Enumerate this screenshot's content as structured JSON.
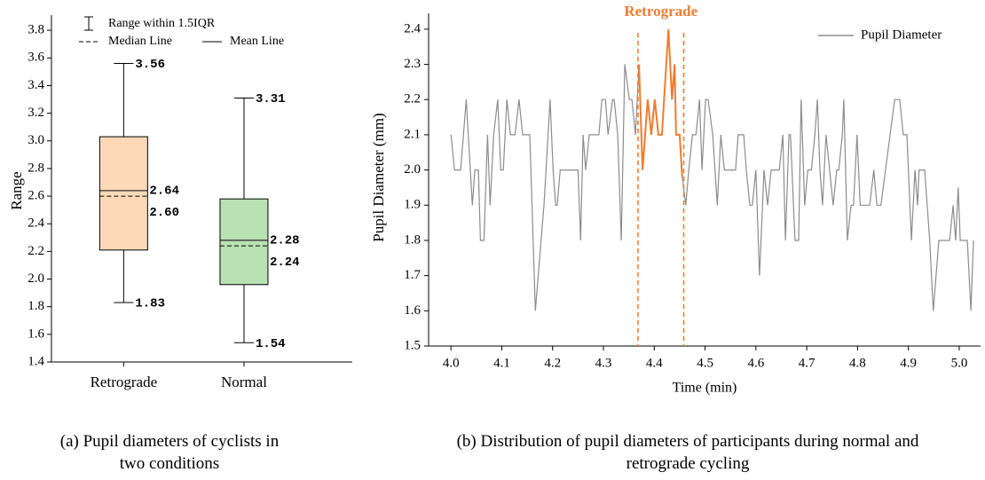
{
  "chart_data": [
    {
      "type": "box",
      "ylabel": "Range",
      "caption": "(a) Pupil diameters of cyclists in two conditions",
      "legend": [
        "Range within 1.5IQR",
        "Median Line",
        "Mean Line"
      ],
      "categories": [
        "Retrograde",
        "Normal"
      ],
      "boxes": [
        {
          "whislo": 1.83,
          "q1": 2.21,
          "med": 2.6,
          "mean": 2.64,
          "q3": 3.03,
          "whishi": 3.56,
          "color": "#fdd9b8",
          "value_labels": {
            "whislo": "1.83",
            "med": "2.60",
            "mean": "2.64",
            "whishi": "3.56"
          }
        },
        {
          "whislo": 1.54,
          "q1": 1.96,
          "med": 2.24,
          "mean": 2.28,
          "q3": 2.58,
          "whishi": 3.31,
          "color": "#b9e1b3",
          "value_labels": {
            "whislo": "1.54",
            "med": "2.24",
            "mean": "2.28",
            "whishi": "3.31"
          }
        }
      ],
      "ylim": [
        1.4,
        3.91
      ],
      "yticks": [
        1.4,
        1.6,
        1.8,
        {
          "value": 2,
          "label": "2.0"
        },
        2.2,
        2.4,
        2.6,
        2.8,
        {
          "value": 3,
          "label": "3.0"
        },
        3.2,
        3.4,
        3.6,
        3.8
      ]
    },
    {
      "type": "line",
      "xlabel": "Time (min)",
      "ylabel": "Pupil Diameter (mm)",
      "caption": "(b) Distribution of pupil diameters of participants during normal and retrograde cycling",
      "highlight": {
        "label": "Retrograde",
        "xrange": [
          4.368,
          4.458
        ],
        "color": "#ed7d31"
      },
      "x": [
        4.0,
        4.007,
        4.019,
        4.03,
        4.042,
        4.047,
        4.054,
        4.058,
        4.065,
        4.072,
        4.077,
        4.084,
        4.092,
        4.098,
        4.103,
        4.11,
        4.117,
        4.126,
        4.134,
        4.141,
        4.155,
        4.166,
        4.183,
        4.195,
        4.201,
        4.206,
        4.209,
        4.215,
        4.25,
        4.255,
        4.26,
        4.265,
        4.272,
        4.279,
        4.291,
        4.297,
        4.304,
        4.309,
        4.318,
        4.321,
        4.328,
        4.335,
        4.342,
        4.351,
        4.356,
        4.363,
        4.37,
        4.377,
        4.387,
        4.394,
        4.401,
        4.408,
        4.415,
        4.428,
        4.435,
        4.44,
        4.443,
        4.45,
        4.455,
        4.462,
        4.468,
        4.475,
        4.482,
        4.489,
        4.494,
        4.501,
        4.506,
        4.515,
        4.524,
        4.531,
        4.538,
        4.553,
        4.56,
        4.565,
        4.576,
        4.581,
        4.588,
        4.593,
        4.6,
        4.607,
        4.616,
        4.623,
        4.63,
        4.646,
        4.653,
        4.658,
        4.665,
        4.668,
        4.677,
        4.684,
        4.689,
        4.696,
        4.702,
        4.709,
        4.716,
        4.721,
        4.726,
        4.731,
        4.738,
        4.745,
        4.752,
        4.759,
        4.763,
        4.77,
        4.773,
        4.78,
        4.787,
        4.792,
        4.799,
        4.805,
        4.815,
        4.824,
        4.832,
        4.838,
        4.846,
        4.873,
        4.883,
        4.89,
        4.897,
        4.906,
        4.913,
        4.918,
        4.921,
        4.932,
        4.942,
        4.949,
        4.96,
        4.981,
        4.988,
        4.993,
        4.998,
        5.002,
        5.016,
        5.023,
        5.028
      ],
      "series": [
        {
          "name": "Pupil Diameter",
          "color": "#8c8c8c",
          "values": [
            2.1,
            2.0,
            2.0,
            2.2,
            1.9,
            2.0,
            2.0,
            1.8,
            1.8,
            2.1,
            1.9,
            2.1,
            2.2,
            2.0,
            2.0,
            2.2,
            2.1,
            2.1,
            2.2,
            2.1,
            2.1,
            1.6,
            1.9,
            2.2,
            2.0,
            1.9,
            1.9,
            2.0,
            2.0,
            1.8,
            2.1,
            2.0,
            2.1,
            2.1,
            2.1,
            2.2,
            2.2,
            2.1,
            2.2,
            2.2,
            2.1,
            1.8,
            2.3,
            2.2,
            2.2,
            2.1,
            2.3,
            2.0,
            2.2,
            2.1,
            2.2,
            2.1,
            2.1,
            2.4,
            2.2,
            2.3,
            2.1,
            2.1,
            1.98,
            1.9,
            2.0,
            2.1,
            2.1,
            2.2,
            2.0,
            2.2,
            2.2,
            2.1,
            1.9,
            2.1,
            2.0,
            2.0,
            2.0,
            2.1,
            2.1,
            2.0,
            1.9,
            1.9,
            2.0,
            1.7,
            2.0,
            1.9,
            2.0,
            2.0,
            2.1,
            1.8,
            2.1,
            2.1,
            1.8,
            1.8,
            2.2,
            1.9,
            2.0,
            2.0,
            2.1,
            2.2,
            2.0,
            1.9,
            2.1,
            2.0,
            1.9,
            2.0,
            2.0,
            2.1,
            2.2,
            1.8,
            1.9,
            1.9,
            2.1,
            1.9,
            1.9,
            1.9,
            2.0,
            1.9,
            1.9,
            2.2,
            2.2,
            2.1,
            2.1,
            1.8,
            2.0,
            1.9,
            2.0,
            2.0,
            1.8,
            1.6,
            1.8,
            1.8,
            1.9,
            1.8,
            1.95,
            1.8,
            1.8,
            1.6,
            1.8
          ]
        }
      ],
      "xlim": [
        3.956,
        5.042
      ],
      "xticks": [
        {
          "value": 4,
          "label": "4.0"
        },
        4.1,
        4.2,
        4.3,
        4.4,
        4.5,
        4.6,
        4.7,
        4.8,
        4.9,
        {
          "value": 5,
          "label": "5.0"
        }
      ],
      "ylim": [
        1.5,
        2.445
      ],
      "yticks": [
        1.5,
        1.6,
        1.7,
        1.8,
        1.9,
        {
          "value": 2,
          "label": "2.0"
        },
        2.1,
        2.2,
        2.3,
        2.4
      ]
    }
  ]
}
